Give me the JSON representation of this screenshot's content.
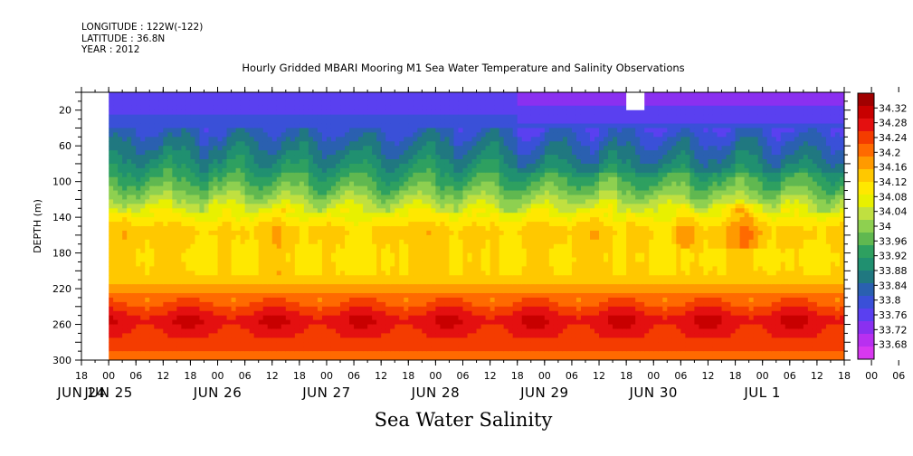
{
  "header": {
    "longitude": "LONGITUDE : 122W(-122)",
    "latitude": "LATITUDE : 36.8N",
    "year": "YEAR : 2012"
  },
  "chart_data": {
    "type": "heatmap",
    "title": "Hourly Gridded MBARI Mooring M1 Sea Water Temperature and Salinity Observations",
    "subtitle": "Sea Water Salinity",
    "ylabel": "DEPTH (m)",
    "xlabel": "",
    "ylim": [
      300,
      0
    ],
    "xlim": [
      -6,
      162
    ],
    "y_ticks": [
      20,
      60,
      100,
      140,
      180,
      220,
      260,
      300
    ],
    "hour_tick_labels": [
      "18",
      "00",
      "06",
      "12",
      "18",
      "00",
      "06",
      "12",
      "18",
      "00",
      "06",
      "12",
      "18",
      "00",
      "06",
      "12",
      "18",
      "00",
      "06",
      "12",
      "18",
      "00",
      "06",
      "12",
      "18",
      "00",
      "06",
      "12",
      "18",
      "00",
      "06",
      "12"
    ],
    "day_labels": [
      {
        "label": "JUN 24",
        "hour": -6
      },
      {
        "label": "JUN 25",
        "hour": 0
      },
      {
        "label": "JUN 26",
        "hour": 24
      },
      {
        "label": "JUN 27",
        "hour": 48
      },
      {
        "label": "JUN 28",
        "hour": 72
      },
      {
        "label": "JUN 29",
        "hour": 96
      },
      {
        "label": "JUN 30",
        "hour": 120
      },
      {
        "label": "JUL  1",
        "hour": 144
      }
    ],
    "colorbar": {
      "labels": [
        "34.32",
        "34.28",
        "34.24",
        "34.2",
        "34.16",
        "34.12",
        "34.08",
        "34.04",
        "34",
        "33.96",
        "33.92",
        "33.88",
        "33.84",
        "33.8",
        "33.76",
        "33.72",
        "33.68"
      ],
      "colors": [
        "#a00000",
        "#c80000",
        "#e41010",
        "#f43c00",
        "#ff6a00",
        "#ff9a00",
        "#ffc800",
        "#ffe800",
        "#e8f000",
        "#c0e040",
        "#8ed050",
        "#60b850",
        "#2ea060",
        "#209070",
        "#207880",
        "#2a60b0",
        "#3a50d8",
        "#5a40f0",
        "#8a30f0",
        "#b830f0",
        "#d838f0"
      ]
    },
    "salinity_profile": {
      "depths": [
        0,
        20,
        50,
        80,
        110,
        135,
        155,
        185,
        205,
        230,
        255,
        280,
        300
      ],
      "values": [
        33.77,
        33.78,
        33.84,
        33.9,
        33.98,
        34.07,
        34.13,
        34.11,
        34.12,
        34.19,
        34.27,
        34.23,
        34.18
      ]
    },
    "missing": [
      {
        "start_hour": -6,
        "end_hour": 0,
        "depth_from": 0,
        "depth_to": 300
      },
      {
        "start_hour": 114,
        "end_hour": 118,
        "depth_from": 0,
        "depth_to": 20
      }
    ]
  }
}
